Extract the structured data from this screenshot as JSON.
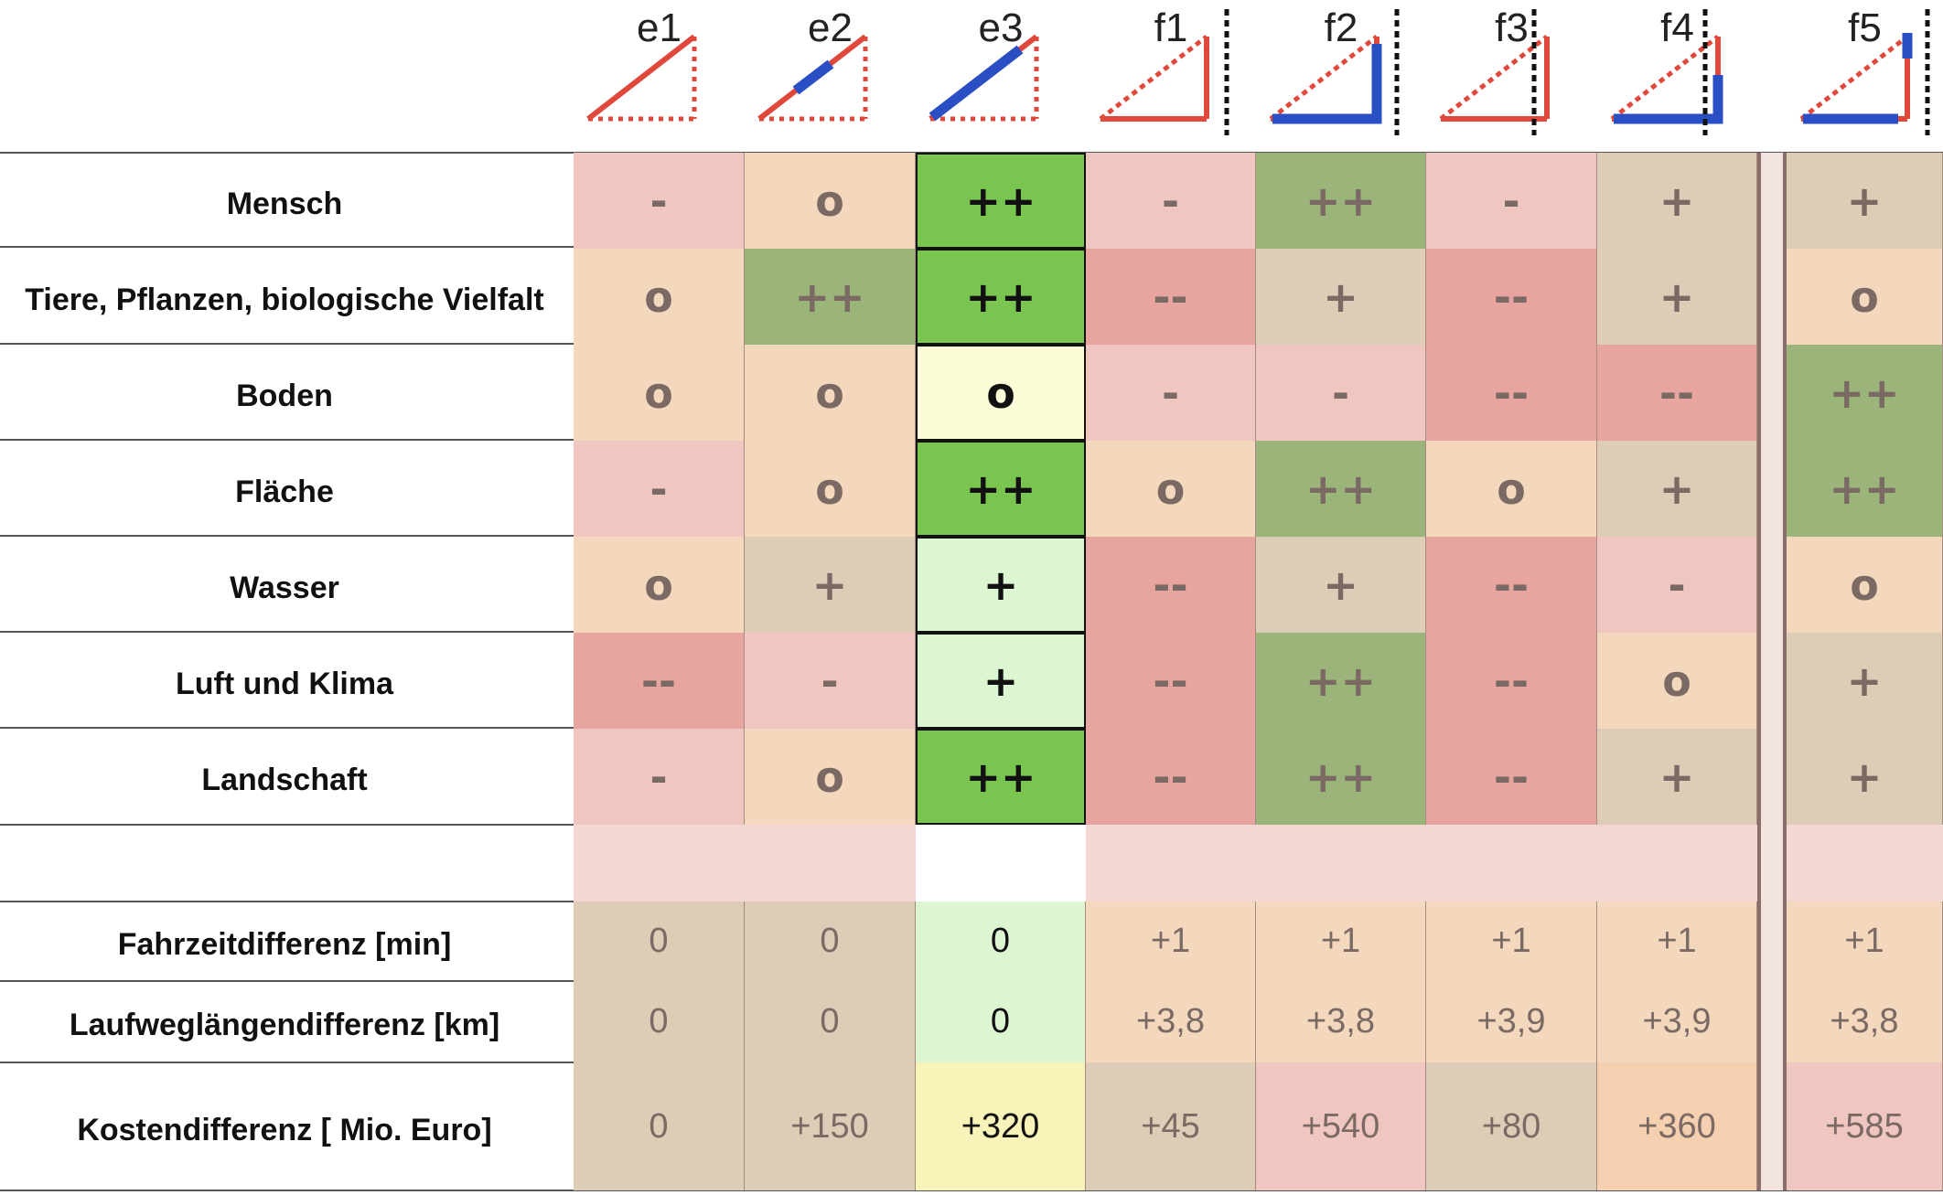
{
  "columns": [
    {
      "id": "e1",
      "label": "e1"
    },
    {
      "id": "e2",
      "label": "e2"
    },
    {
      "id": "e3",
      "label": "e3"
    },
    {
      "id": "f1",
      "label": "f1"
    },
    {
      "id": "f2",
      "label": "f2"
    },
    {
      "id": "f3",
      "label": "f3"
    },
    {
      "id": "f4",
      "label": "f4"
    },
    {
      "id": "f5",
      "label": "f5"
    }
  ],
  "rating_rows": [
    {
      "label": "Mensch",
      "values": [
        "-",
        "o",
        "++",
        "-",
        "++",
        "-",
        "+",
        "+"
      ]
    },
    {
      "label": "Tiere, Pflanzen, biologische Vielfalt",
      "values": [
        "o",
        "++",
        "++",
        "--",
        "+",
        "--",
        "+",
        "o"
      ]
    },
    {
      "label": "Boden",
      "values": [
        "o",
        "o",
        "o",
        "-",
        "-",
        "--",
        "--",
        "++"
      ]
    },
    {
      "label": "Fläche",
      "values": [
        "-",
        "o",
        "++",
        "o",
        "++",
        "o",
        "+",
        "++"
      ]
    },
    {
      "label": "Wasser",
      "values": [
        "o",
        "+",
        "+",
        "--",
        "+",
        "--",
        "-",
        "o"
      ]
    },
    {
      "label": "Luft und Klima",
      "values": [
        "--",
        "-",
        "+",
        "--",
        "++",
        "--",
        "o",
        "+"
      ]
    },
    {
      "label": "Landschaft",
      "values": [
        "-",
        "o",
        "++",
        "--",
        "++",
        "--",
        "+",
        "+"
      ]
    }
  ],
  "metric_rows": [
    {
      "label": "Fahrzeitdifferenz [min]",
      "values": [
        "0",
        "0",
        "0",
        "+1",
        "+1",
        "+1",
        "+1",
        "+1"
      ]
    },
    {
      "label": "Laufweglängendifferenz [km]",
      "values": [
        "0",
        "0",
        "0",
        "+3,8",
        "+3,8",
        "+3,9",
        "+3,9",
        "+3,8"
      ]
    },
    {
      "label": "Kostendifferenz [ Mio. Euro]",
      "values": [
        "0",
        "+150",
        "+320",
        "+45",
        "+540",
        "+80",
        "+360",
        "+585"
      ]
    }
  ],
  "rating_colors": {
    "--": "#e8a59f",
    "-": "#f0c6c1",
    "o": "#f3d8bd",
    "+": "#ddcdb6",
    "++": "#9bb47a"
  },
  "highlight_column": "e3",
  "highlight_colors": {
    "++": "#7ac450",
    "+": "#dcf6d2",
    "o": "#fdfcd8",
    "metric": "#dcf6d2",
    "cost": "#f8f3b8"
  },
  "metric_colors": {
    "Fahrzeitdifferenz [min]": [
      "#ddcdb6",
      "#ddcdb6",
      "#dcf6d2",
      "#f3d8bd",
      "#f3d8bd",
      "#f3d8bd",
      "#f3d8bd",
      "#f3d8bd"
    ],
    "Laufweglängendifferenz [km]": [
      "#ddcdb6",
      "#ddcdb6",
      "#dcf6d2",
      "#f3d8bd",
      "#f3d8bd",
      "#f3d8bd",
      "#f3d8bd",
      "#f3d8bd"
    ],
    "Kostendifferenz [ Mio. Euro]": [
      "#ddcdb6",
      "#ddcdb6",
      "#f8f3b8",
      "#ddcdb6",
      "#f0c6c1",
      "#ddcdb6",
      "#f4d0b0",
      "#f0c6c1"
    ]
  },
  "spacer_color": "#f3d7d2",
  "line_colors": {
    "red": "#e0483c",
    "blue": "#2a4fc4",
    "black": "#111111"
  }
}
